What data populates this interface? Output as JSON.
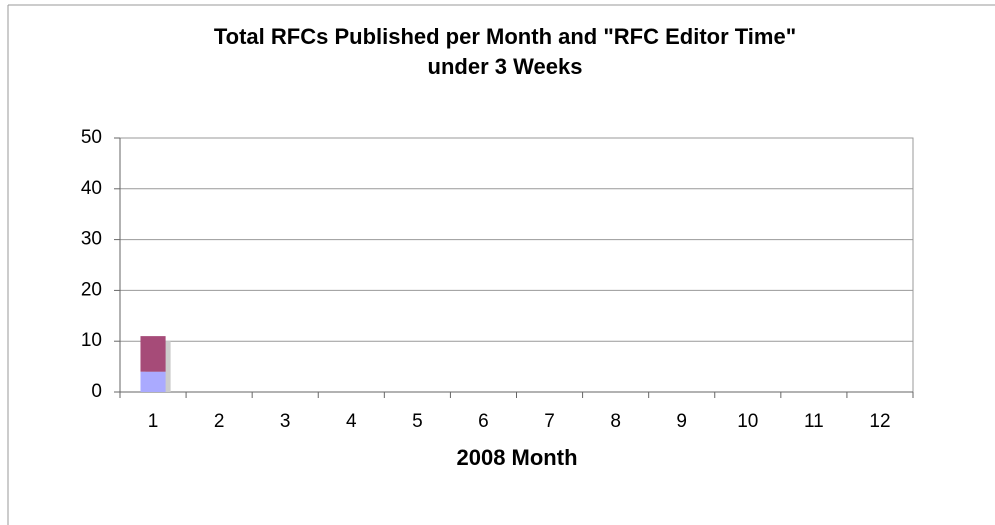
{
  "chart_data": {
    "type": "stacked_bar",
    "title": "Total RFCs Published per Month and \"RFC Editor Time\"\nunder 3 Weeks",
    "x_label": "2008 Month",
    "categories": [
      "1",
      "2",
      "3",
      "4",
      "5",
      "6",
      "7",
      "8",
      "9",
      "10",
      "11",
      "12"
    ],
    "series": [
      {
        "color": "#aaaaff",
        "values": [
          4,
          0,
          0,
          0,
          0,
          0,
          0,
          0,
          0,
          0,
          0,
          0
        ]
      },
      {
        "color": "#a64b78",
        "values": [
          7,
          0,
          0,
          0,
          0,
          0,
          0,
          0,
          0,
          0,
          0,
          0
        ]
      }
    ],
    "ylim": [
      0,
      50
    ],
    "yticks": [
      0,
      10,
      20,
      30,
      40,
      50
    ],
    "grid": true
  }
}
